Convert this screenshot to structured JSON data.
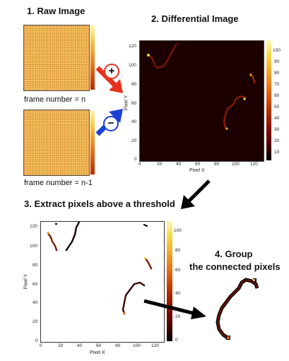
{
  "steps": {
    "raw": {
      "title": "1. Raw Image",
      "caption_top": "frame number = n",
      "caption_bottom": "frame number = n-1"
    },
    "diff": {
      "title": "2. Differential Image"
    },
    "threshold": {
      "title": "3. Extract pixels above a threshold"
    },
    "group": {
      "title_line1": "4. Group",
      "title_line2": "the connected pixels"
    }
  },
  "operators": {
    "plus": "+",
    "minus": "−"
  },
  "diff_plot": {
    "xlabel": "Pixel X",
    "ylabel": "Pixel Y",
    "xticks": [
      "0",
      "20",
      "40",
      "60",
      "80",
      "100",
      "120"
    ],
    "yticks": [
      "0",
      "20",
      "40",
      "60",
      "80",
      "100",
      "120"
    ],
    "cbar_ticks": [
      "10",
      "20",
      "30",
      "40",
      "50",
      "60",
      "70",
      "80",
      "90",
      "100"
    ]
  },
  "threshold_plot": {
    "xlabel": "Pixel X",
    "ylabel": "Pixel Y",
    "xticks": [
      "0",
      "20",
      "40",
      "60",
      "80",
      "100",
      "120"
    ],
    "yticks": [
      "0",
      "20",
      "40",
      "60",
      "80",
      "100",
      "120"
    ],
    "cbar_ticks": [
      "0",
      "20",
      "40",
      "60",
      "80",
      "100"
    ]
  },
  "colors": {
    "arrow_plus": "#e8321e",
    "arrow_minus": "#1c3fd6",
    "arrow_black": "#000000"
  }
}
